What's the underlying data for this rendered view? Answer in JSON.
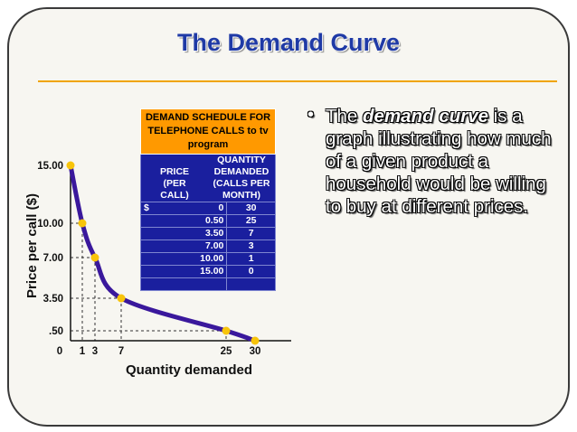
{
  "slide": {
    "title": "The Demand Curve",
    "bullet": {
      "before": "The ",
      "emphasis": "demand curve",
      "after": " is a graph illustrating how much of a given product a household would be willing to buy at different prices."
    }
  },
  "table": {
    "header": "DEMAND SCHEDULE FOR TELEPHONE CALLS to tv program",
    "col_price_lines": [
      "PRICE",
      "(PER",
      "CALL)"
    ],
    "col_qty_lines": [
      "QUANTITY",
      "DEMANDED",
      "(CALLS PER",
      "MONTH)"
    ],
    "currency": "$",
    "rows": [
      {
        "price": "0",
        "qty": "30"
      },
      {
        "price": "0.50",
        "qty": "25"
      },
      {
        "price": "3.50",
        "qty": "7"
      },
      {
        "price": "7.00",
        "qty": "3"
      },
      {
        "price": "10.00",
        "qty": "1"
      },
      {
        "price": "15.00",
        "qty": "0"
      }
    ]
  },
  "colors": {
    "curve": "#3a189c",
    "points": "#f8c40a",
    "table_header": "#ff9900",
    "table_body": "#1a1f9e",
    "title": "#1f3aa6",
    "rule": "#f0a400"
  },
  "chart_data": {
    "type": "line",
    "xlabel": "Quantity demanded",
    "ylabel": "Price per call ($)",
    "x_ticks": [
      "0",
      "1",
      "3",
      "7",
      "25",
      "30"
    ],
    "y_ticks": [
      ".50",
      "3.50",
      "7.00",
      "10.00",
      "15.00"
    ],
    "points": [
      {
        "x": 0,
        "y": 15.0
      },
      {
        "x": 1,
        "y": 10.0
      },
      {
        "x": 3,
        "y": 7.0
      },
      {
        "x": 7,
        "y": 3.5
      },
      {
        "x": 25,
        "y": 0.5
      },
      {
        "x": 30,
        "y": 0
      }
    ],
    "curve_type": "smooth",
    "reference_lines": "dashed",
    "grid": false
  }
}
